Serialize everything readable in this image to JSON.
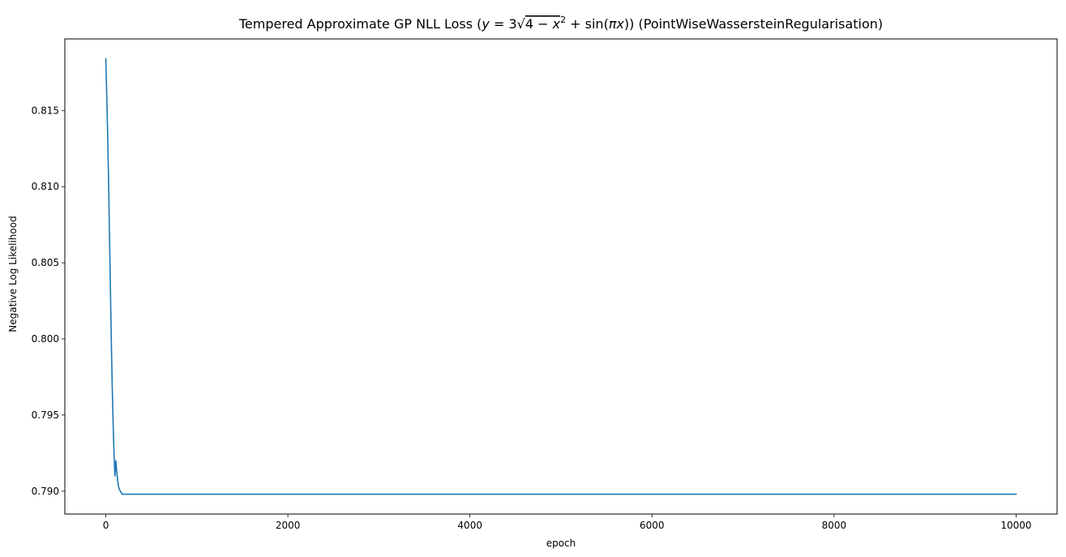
{
  "chart_data": {
    "type": "line",
    "title": "Tempered Approximate GP NLL Loss (y = 3√4 − x² + sin(πx)) (PointWiseWassersteinRegularisation)",
    "title_parts": {
      "prefix": "Tempered Approximate GP NLL Loss (",
      "y": "y",
      "eq": " = 3",
      "sqrt": "√",
      "radicand_4": "4 − ",
      "x": "x",
      "sup2": "2",
      "plus_sin": " + sin(",
      "pi": "π",
      "x2": "x",
      "suffix": ")) (PointWiseWassersteinRegularisation)"
    },
    "xlabel": "epoch",
    "ylabel": "Negative Log Likelihood",
    "xlim": [
      -450,
      10450
    ],
    "ylim": [
      0.7885,
      0.8197
    ],
    "xticks": [
      0,
      2000,
      4000,
      6000,
      8000,
      10000
    ],
    "xtick_labels": [
      "0",
      "2000",
      "4000",
      "6000",
      "8000",
      "10000"
    ],
    "yticks": [
      0.79,
      0.795,
      0.8,
      0.805,
      0.81,
      0.815
    ],
    "ytick_labels": [
      "0.790",
      "0.795",
      "0.800",
      "0.805",
      "0.810",
      "0.815"
    ],
    "grid": false,
    "series": [
      {
        "color": "#1f77b4",
        "x": [
          0,
          10,
          20,
          30,
          40,
          50,
          60,
          70,
          80,
          90,
          100,
          110,
          120,
          130,
          140,
          150,
          160,
          170,
          180,
          190,
          200,
          225,
          250,
          300,
          400,
          600,
          1000,
          2000,
          4000,
          6000,
          8000,
          10000
        ],
        "y": [
          0.8184,
          0.816,
          0.8135,
          0.8105,
          0.807,
          0.8035,
          0.8,
          0.797,
          0.7945,
          0.7925,
          0.791,
          0.792,
          0.7913,
          0.7907,
          0.7903,
          0.7901,
          0.79,
          0.7899,
          0.7898,
          0.7898,
          0.7898,
          0.7898,
          0.7898,
          0.7898,
          0.7898,
          0.7898,
          0.7898,
          0.7898,
          0.7898,
          0.7898,
          0.7898,
          0.7898
        ]
      }
    ]
  }
}
